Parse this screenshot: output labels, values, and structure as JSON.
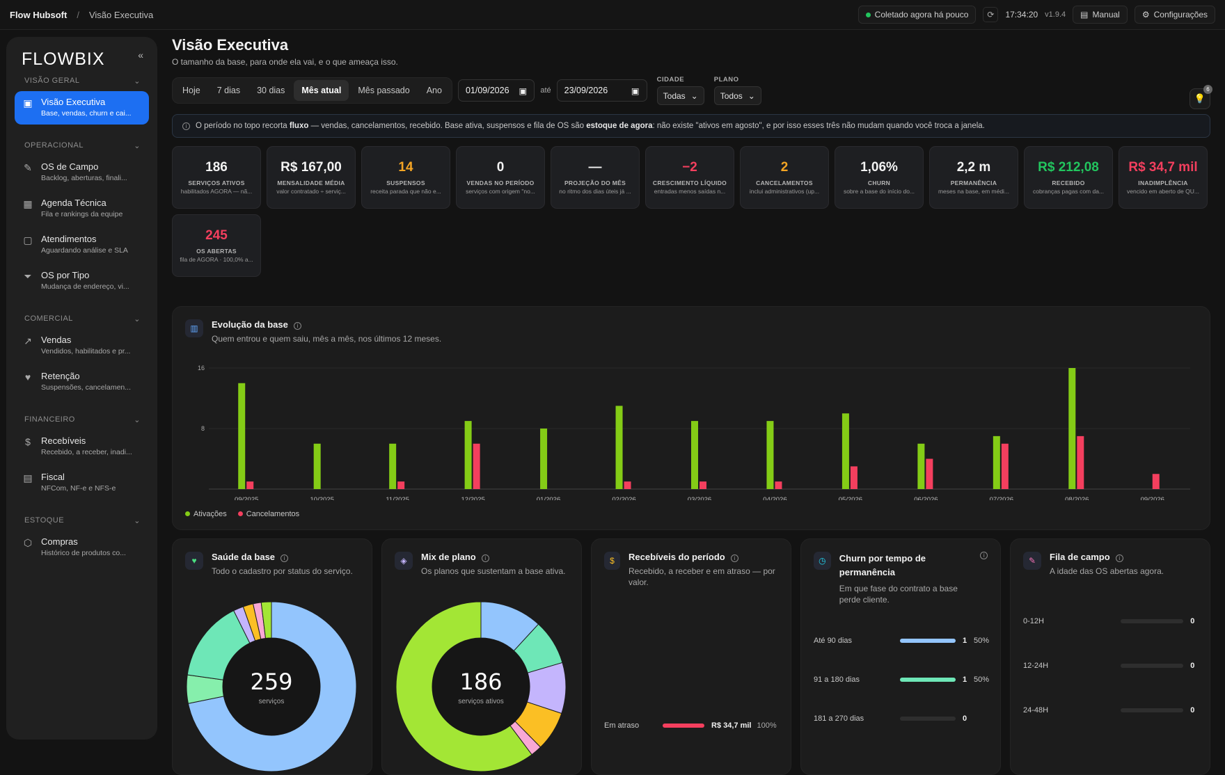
{
  "topbar": {
    "brand": "Flow Hubsoft",
    "separator": "/",
    "crumb": "Visão Executiva",
    "status": "Coletado agora há pouco",
    "clock": "17:34:20",
    "version": "v1.9.4",
    "manual": "Manual",
    "config": "Configurações"
  },
  "sidebar": {
    "logo": "FLOWBIX",
    "collapse": "«",
    "sections": [
      {
        "title": "VISÃO GERAL",
        "items": [
          {
            "label": "Visão Executiva",
            "sub": "Base, vendas, churn e cai...",
            "icon": "presentation-icon",
            "active": true
          }
        ]
      },
      {
        "title": "OPERACIONAL",
        "items": [
          {
            "label": "OS de Campo",
            "sub": "Backlog, aberturas, finali...",
            "icon": "wrench-icon"
          },
          {
            "label": "Agenda Técnica",
            "sub": "Fila e rankings da equipe",
            "icon": "calendar-icon"
          },
          {
            "label": "Atendimentos",
            "sub": "Aguardando análise e SLA",
            "icon": "chat-icon"
          },
          {
            "label": "OS por Tipo",
            "sub": "Mudança de endereço, vi...",
            "icon": "filter-icon"
          }
        ]
      },
      {
        "title": "COMERCIAL",
        "items": [
          {
            "label": "Vendas",
            "sub": "Vendidos, habilitados e pr...",
            "icon": "chart-line-icon"
          },
          {
            "label": "Retenção",
            "sub": "Suspensões, cancelamen...",
            "icon": "heart-crack-icon"
          }
        ]
      },
      {
        "title": "FINANCEIRO",
        "items": [
          {
            "label": "Recebíveis",
            "sub": "Recebido, a receber, inadi...",
            "icon": "dollar-icon"
          },
          {
            "label": "Fiscal",
            "sub": "NFCom, NF-e e NFS-e",
            "icon": "document-icon"
          }
        ]
      },
      {
        "title": "ESTOQUE",
        "items": [
          {
            "label": "Compras",
            "sub": "Histórico de produtos co...",
            "icon": "box-icon"
          }
        ]
      }
    ]
  },
  "header": {
    "title": "Visão Executiva",
    "subtitle": "O tamanho da base, para onde ela vai, e o que ameaça isso."
  },
  "filters": {
    "periods": [
      "Hoje",
      "7 dias",
      "30 dias",
      "Mês atual",
      "Mês passado",
      "Ano"
    ],
    "active_period": "Mês atual",
    "date_from": "01/09/2026",
    "ate": "até",
    "date_to": "23/09/2026",
    "cidade_label": "CIDADE",
    "cidade_value": "Todas",
    "plano_label": "PLANO",
    "plano_value": "Todos",
    "hint_count": "6"
  },
  "notice": {
    "pre": "O período no topo recorta ",
    "bold1": "fluxo",
    "mid": " — vendas, cancelamentos, recebido. Base ativa, suspensos e fila de OS são ",
    "bold2": "estoque de agora",
    "post": ": não existe \"ativos em agosto\", e por isso esses três não mudam quando você troca a janela."
  },
  "kpis": [
    {
      "value": "186",
      "label": "SERVIÇOS ATIVOS",
      "desc": "habilitados AGORA — nã...",
      "color": ""
    },
    {
      "value": "R$ 167,00",
      "label": "MENSALIDADE MÉDIA",
      "desc": "valor contratado ÷ serviç...",
      "color": ""
    },
    {
      "value": "14",
      "label": "SUSPENSOS",
      "desc": "receita parada que não e...",
      "color": "orange"
    },
    {
      "value": "0",
      "label": "VENDAS NO PERÍODO",
      "desc": "serviços com origem \"no...",
      "color": ""
    },
    {
      "value": "—",
      "label": "PROJEÇÃO DO MÊS",
      "desc": "no ritmo dos dias úteis já ...",
      "color": ""
    },
    {
      "value": "−2",
      "label": "CRESCIMENTO LÍQUIDO",
      "desc": "entradas menos saídas n...",
      "color": "red"
    },
    {
      "value": "2",
      "label": "CANCELAMENTOS",
      "desc": "inclui administrativos (up...",
      "color": "orange"
    },
    {
      "value": "1,06%",
      "label": "CHURN",
      "desc": "sobre a base do início do...",
      "color": ""
    },
    {
      "value": "2,2 m",
      "label": "PERMANÊNCIA",
      "desc": "meses na base, em médi...",
      "color": ""
    },
    {
      "value": "R$ 212,08",
      "label": "RECEBIDO",
      "desc": "cobranças pagas com da...",
      "color": "green"
    },
    {
      "value": "R$ 34,7 mil",
      "label": "INADIMPLÊNCIA",
      "desc": "vencido em aberto de QU...",
      "color": "red"
    },
    {
      "value": "245",
      "label": "OS ABERTAS",
      "desc": "fila de AGORA · 100,0% a...",
      "color": "red"
    }
  ],
  "evolucao": {
    "title": "Evolução da base",
    "subtitle": "Quem entrou e quem saiu, mês a mês, nos últimos 12 meses.",
    "legend_a": "Ativações",
    "legend_c": "Cancelamentos"
  },
  "chart_data": {
    "type": "bar",
    "categories": [
      "09/2025",
      "10/2025",
      "11/2025",
      "12/2025",
      "01/2026",
      "02/2026",
      "03/2026",
      "04/2026",
      "05/2026",
      "06/2026",
      "07/2026",
      "08/2026",
      "09/2026"
    ],
    "series": [
      {
        "name": "Ativações",
        "color": "#84cc16",
        "values": [
          14,
          6,
          6,
          9,
          8,
          11,
          9,
          9,
          10,
          6,
          7,
          16,
          0
        ]
      },
      {
        "name": "Cancelamentos",
        "color": "#f43f5e",
        "values": [
          1,
          0,
          1,
          6,
          0,
          1,
          1,
          1,
          3,
          4,
          6,
          7,
          2
        ]
      }
    ],
    "yticks": [
      8,
      16
    ],
    "ylim": [
      0,
      16
    ]
  },
  "saude": {
    "title": "Saúde da base",
    "subtitle": "Todo o cadastro por status do serviço.",
    "total": "259",
    "unit": "serviços",
    "slices": [
      {
        "v": 186,
        "c": "#93c5fd"
      },
      {
        "v": 14,
        "c": "#86efac"
      },
      {
        "v": 40,
        "c": "#6ee7b7"
      },
      {
        "v": 5,
        "c": "#c4b5fd"
      },
      {
        "v": 5,
        "c": "#fbbf24"
      },
      {
        "v": 4,
        "c": "#f9a8d4"
      },
      {
        "v": 5,
        "c": "#a3e635"
      }
    ]
  },
  "mix": {
    "title": "Mix de plano",
    "subtitle": "Os planos que sustentam a base ativa.",
    "total": "186",
    "unit": "serviços ativos",
    "slices": [
      {
        "v": 22,
        "c": "#93c5fd"
      },
      {
        "v": 16,
        "c": "#6ee7b7"
      },
      {
        "v": 18,
        "c": "#c4b5fd"
      },
      {
        "v": 14,
        "c": "#fbbf24"
      },
      {
        "v": 4,
        "c": "#f9a8d4"
      },
      {
        "v": 112,
        "c": "#a3e635"
      }
    ]
  },
  "recebiveis": {
    "title": "Recebíveis do período",
    "subtitle": "Recebido, a receber e em atraso — por valor.",
    "row_label": "Em atraso",
    "row_value": "R$ 34,7 mil",
    "row_pct": "100%"
  },
  "churn": {
    "title": "Churn por tempo de permanência",
    "subtitle": "Em que fase do contrato a base perde cliente.",
    "rows": [
      {
        "label": "Até 90 dias",
        "n": "1",
        "pct": "50%",
        "fill": 1.0,
        "color": "#93c5fd"
      },
      {
        "label": "91 a 180 dias",
        "n": "1",
        "pct": "50%",
        "fill": 1.0,
        "color": "#6ee7b7"
      },
      {
        "label": "181 a 270 dias",
        "n": "0",
        "pct": "",
        "fill": 0,
        "color": "#6ee7b7"
      }
    ]
  },
  "fila": {
    "title": "Fila de campo",
    "subtitle": "A idade das OS abertas agora.",
    "rows": [
      {
        "label": "0-12H",
        "n": "0"
      },
      {
        "label": "12-24H",
        "n": "0"
      },
      {
        "label": "24-48H",
        "n": "0"
      }
    ]
  }
}
